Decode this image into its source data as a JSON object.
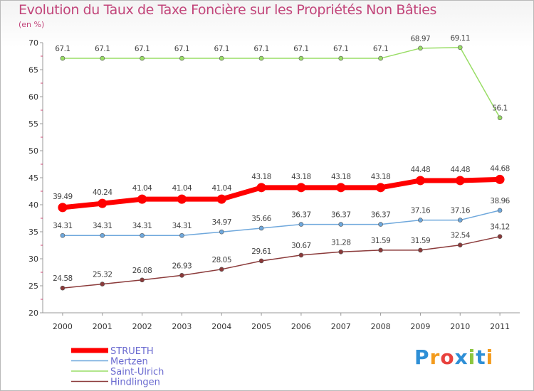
{
  "chart_data": {
    "type": "line",
    "title": "Evolution du Taux de Taxe Foncière sur les Propriétés Non Bâties",
    "subtitle": "(en %)",
    "xlabel": "",
    "ylabel": "",
    "x": [
      "2000",
      "2001",
      "2002",
      "2003",
      "2004",
      "2005",
      "2006",
      "2007",
      "2008",
      "2009",
      "2010",
      "2011"
    ],
    "ylim": [
      20,
      70
    ],
    "yticks": [
      "20",
      "25",
      "30",
      "35",
      "40",
      "45",
      "50",
      "55",
      "60",
      "65",
      "70"
    ],
    "series": [
      {
        "name": "STRUETH",
        "color": "#ff0000",
        "values": [
          39.49,
          40.24,
          41.04,
          41.04,
          41.04,
          43.18,
          43.18,
          43.18,
          43.18,
          44.48,
          44.48,
          44.68
        ],
        "labels": [
          "39.49",
          "40.24",
          "41.04",
          "41.04",
          "41.04",
          "43.18",
          "43.18",
          "43.18",
          "43.18",
          "44.48",
          "44.48",
          "44.68"
        ]
      },
      {
        "name": "Mertzen",
        "color": "#6fa8dc",
        "values": [
          34.31,
          34.31,
          34.31,
          34.31,
          34.97,
          35.66,
          36.37,
          36.37,
          36.37,
          37.16,
          37.16,
          38.96
        ],
        "labels": [
          "34.31",
          "34.31",
          "34.31",
          "34.31",
          "34.97",
          "35.66",
          "36.37",
          "36.37",
          "36.37",
          "37.16",
          "37.16",
          "38.96"
        ]
      },
      {
        "name": "Saint-Ulrich",
        "color": "#99dd66",
        "values": [
          67.1,
          67.1,
          67.1,
          67.1,
          67.1,
          67.1,
          67.1,
          67.1,
          67.1,
          68.97,
          69.11,
          56.1
        ],
        "labels": [
          "67.1",
          "67.1",
          "67.1",
          "67.1",
          "67.1",
          "67.1",
          "67.1",
          "67.1",
          "67.1",
          "68.97",
          "69.11",
          "56.1"
        ]
      },
      {
        "name": "Hindlingen",
        "color": "#8b3a3a",
        "values": [
          24.58,
          25.32,
          26.08,
          26.93,
          28.05,
          29.61,
          30.67,
          31.28,
          31.59,
          31.59,
          32.54,
          34.12
        ],
        "labels": [
          "24.58",
          "25.32",
          "26.08",
          "26.93",
          "28.05",
          "29.61",
          "30.67",
          "31.28",
          "31.59",
          "31.59",
          "32.54",
          "34.12"
        ]
      }
    ],
    "legend": [
      "STRUETH",
      "Mertzen",
      "Saint-Ulrich",
      "Hindlingen"
    ],
    "legend_position": "bottom-left",
    "grid": false
  },
  "branding": {
    "logo": [
      "P",
      "r",
      "o",
      "x",
      "i",
      "t",
      "i"
    ]
  }
}
